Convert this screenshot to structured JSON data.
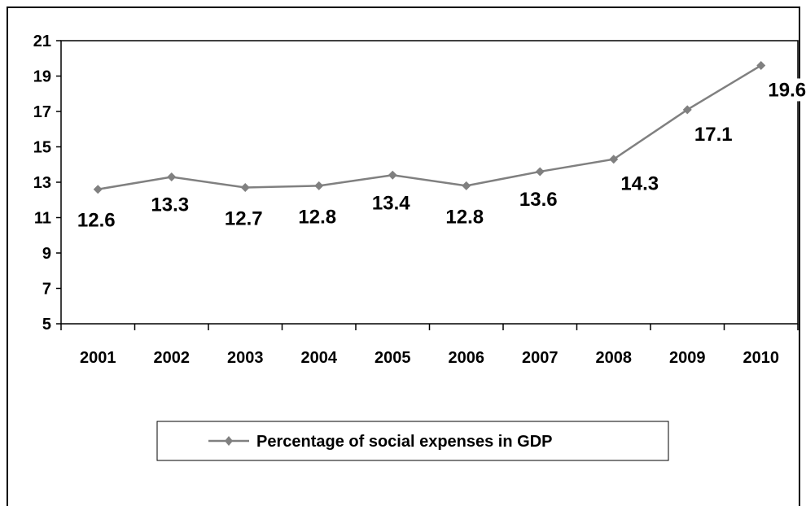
{
  "chart_data": {
    "type": "line",
    "categories": [
      "2001",
      "2002",
      "2003",
      "2004",
      "2005",
      "2006",
      "2007",
      "2008",
      "2009",
      "2010"
    ],
    "series": [
      {
        "name": "Percentage of social expenses in GDP",
        "values": [
          12.6,
          13.3,
          12.7,
          12.8,
          13.4,
          12.8,
          13.6,
          14.3,
          17.1,
          19.6
        ]
      }
    ],
    "data_labels": [
      "12.6",
      "13.3",
      "12.7",
      "12.8",
      "13.4",
      "12.8",
      "13.6",
      "14.3",
      "17.1",
      "19.6"
    ],
    "ylim": [
      5,
      21
    ],
    "y_ticks": [
      5,
      7,
      9,
      11,
      13,
      15,
      17,
      19,
      21
    ],
    "y_tick_labels": [
      "5",
      "7",
      "9",
      "11",
      "13",
      "15",
      "17",
      "19",
      "21"
    ],
    "grid": false,
    "legend": {
      "position": "bottom",
      "entries": [
        "Percentage of social expenses in GDP"
      ]
    },
    "line_color": "#808080",
    "marker": "diamond"
  }
}
